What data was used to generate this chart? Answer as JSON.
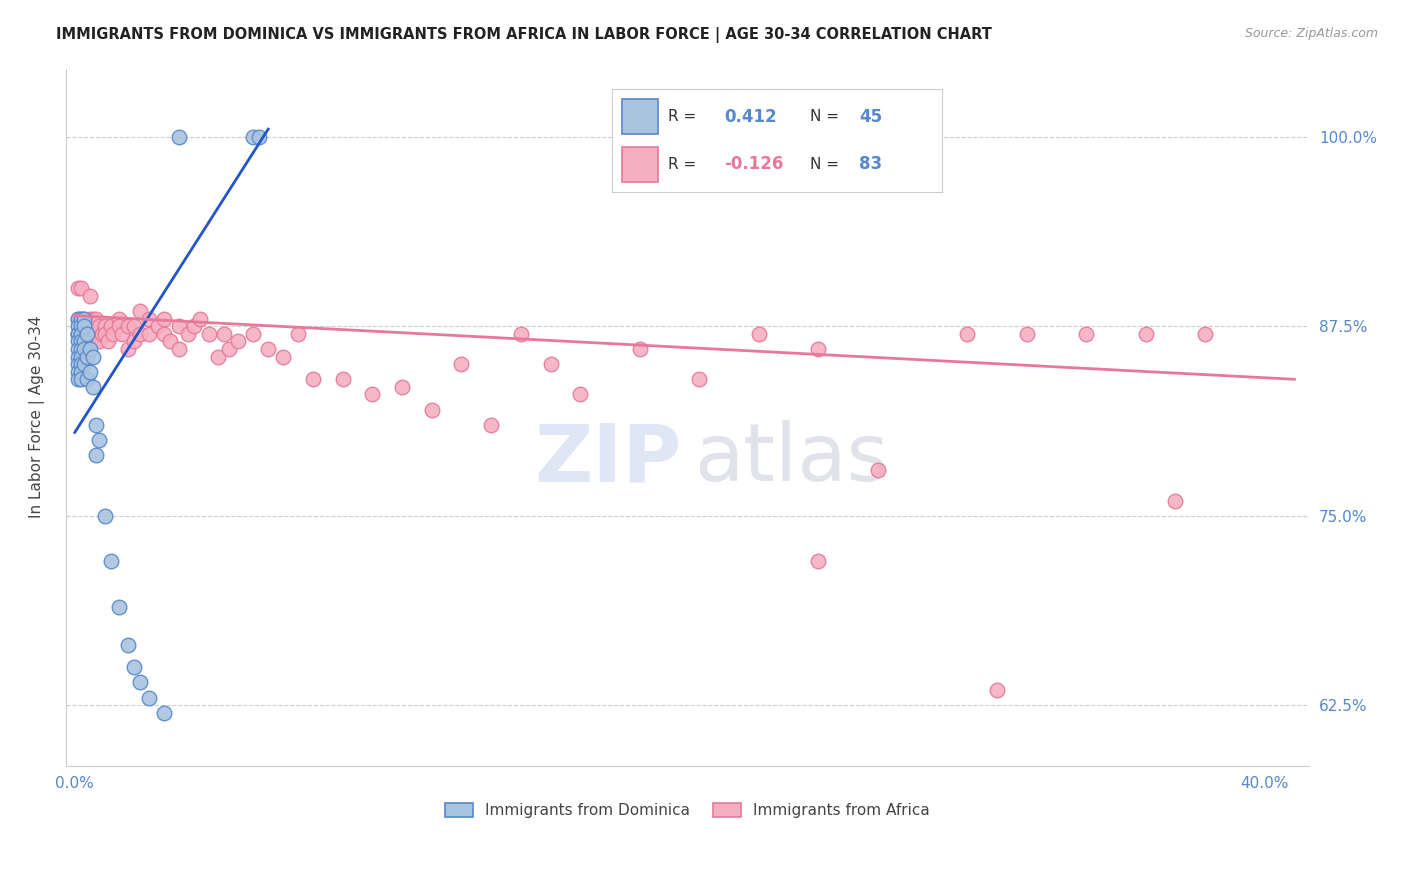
{
  "title": "IMMIGRANTS FROM DOMINICA VS IMMIGRANTS FROM AFRICA IN LABOR FORCE | AGE 30-34 CORRELATION CHART",
  "source": "Source: ZipAtlas.com",
  "ylabel": "In Labor Force | Age 30-34",
  "xlim_min": -0.003,
  "xlim_max": 0.415,
  "ylim_min": 0.585,
  "ylim_max": 1.045,
  "xtick_positions": [
    0.0,
    0.05,
    0.1,
    0.15,
    0.2,
    0.25,
    0.3,
    0.35,
    0.4
  ],
  "xticklabels": [
    "0.0%",
    "",
    "",
    "",
    "",
    "",
    "",
    "",
    "40.0%"
  ],
  "ytick_positions": [
    0.625,
    0.75,
    0.875,
    1.0
  ],
  "ytick_labels": [
    "62.5%",
    "75.0%",
    "87.5%",
    "100.0%"
  ],
  "dominica_color": "#aac4e0",
  "dominica_edge": "#5588cc",
  "africa_color": "#f5afc0",
  "africa_edge": "#e8789a",
  "dominica_line_color": "#2255cc",
  "africa_line_color": "#e8789a",
  "legend_R_dominica": "0.412",
  "legend_N_dominica": "45",
  "legend_R_africa": "-0.126",
  "legend_N_africa": "83",
  "dominica_x": [
    0.001,
    0.001,
    0.001,
    0.001,
    0.001,
    0.001,
    0.001,
    0.001,
    0.001,
    0.001,
    0.002,
    0.002,
    0.002,
    0.002,
    0.002,
    0.002,
    0.002,
    0.002,
    0.002,
    0.003,
    0.003,
    0.003,
    0.003,
    0.003,
    0.004,
    0.004,
    0.004,
    0.005,
    0.005,
    0.006,
    0.006,
    0.007,
    0.007,
    0.008,
    0.01,
    0.012,
    0.015,
    0.018,
    0.02,
    0.022,
    0.025,
    0.03,
    0.035,
    0.06,
    0.062
  ],
  "dominica_y": [
    0.88,
    0.875,
    0.87,
    0.87,
    0.865,
    0.86,
    0.855,
    0.85,
    0.845,
    0.84,
    0.88,
    0.875,
    0.87,
    0.865,
    0.86,
    0.855,
    0.85,
    0.845,
    0.84,
    0.88,
    0.875,
    0.865,
    0.86,
    0.85,
    0.87,
    0.855,
    0.84,
    0.86,
    0.845,
    0.855,
    0.835,
    0.81,
    0.79,
    0.8,
    0.75,
    0.72,
    0.69,
    0.665,
    0.65,
    0.64,
    0.63,
    0.62,
    1.0,
    1.0,
    1.0
  ],
  "africa_x": [
    0.001,
    0.001,
    0.001,
    0.002,
    0.002,
    0.002,
    0.002,
    0.002,
    0.003,
    0.003,
    0.003,
    0.003,
    0.004,
    0.004,
    0.004,
    0.005,
    0.005,
    0.005,
    0.006,
    0.006,
    0.006,
    0.007,
    0.007,
    0.008,
    0.008,
    0.009,
    0.01,
    0.01,
    0.011,
    0.012,
    0.013,
    0.015,
    0.015,
    0.016,
    0.018,
    0.018,
    0.02,
    0.02,
    0.022,
    0.022,
    0.025,
    0.025,
    0.028,
    0.03,
    0.03,
    0.032,
    0.035,
    0.035,
    0.038,
    0.04,
    0.042,
    0.045,
    0.048,
    0.05,
    0.052,
    0.055,
    0.06,
    0.065,
    0.07,
    0.075,
    0.08,
    0.09,
    0.1,
    0.11,
    0.12,
    0.13,
    0.14,
    0.15,
    0.16,
    0.17,
    0.19,
    0.21,
    0.23,
    0.25,
    0.27,
    0.3,
    0.32,
    0.34,
    0.36,
    0.38,
    0.25,
    0.31,
    0.37
  ],
  "africa_y": [
    0.9,
    0.88,
    0.87,
    0.9,
    0.88,
    0.875,
    0.87,
    0.865,
    0.88,
    0.875,
    0.865,
    0.86,
    0.875,
    0.87,
    0.86,
    0.895,
    0.88,
    0.87,
    0.88,
    0.875,
    0.865,
    0.88,
    0.87,
    0.875,
    0.865,
    0.87,
    0.875,
    0.87,
    0.865,
    0.875,
    0.87,
    0.88,
    0.875,
    0.87,
    0.875,
    0.86,
    0.875,
    0.865,
    0.885,
    0.87,
    0.88,
    0.87,
    0.875,
    0.88,
    0.87,
    0.865,
    0.875,
    0.86,
    0.87,
    0.875,
    0.88,
    0.87,
    0.855,
    0.87,
    0.86,
    0.865,
    0.87,
    0.86,
    0.855,
    0.87,
    0.84,
    0.84,
    0.83,
    0.835,
    0.82,
    0.85,
    0.81,
    0.87,
    0.85,
    0.83,
    0.86,
    0.84,
    0.87,
    0.86,
    0.78,
    0.87,
    0.87,
    0.87,
    0.87,
    0.87,
    0.72,
    0.635,
    0.76
  ],
  "dom_trendline_x": [
    0.0,
    0.065
  ],
  "dom_trendline_y": [
    0.805,
    1.005
  ],
  "afr_trendline_x": [
    0.0,
    0.41
  ],
  "afr_trendline_y": [
    0.882,
    0.84
  ]
}
